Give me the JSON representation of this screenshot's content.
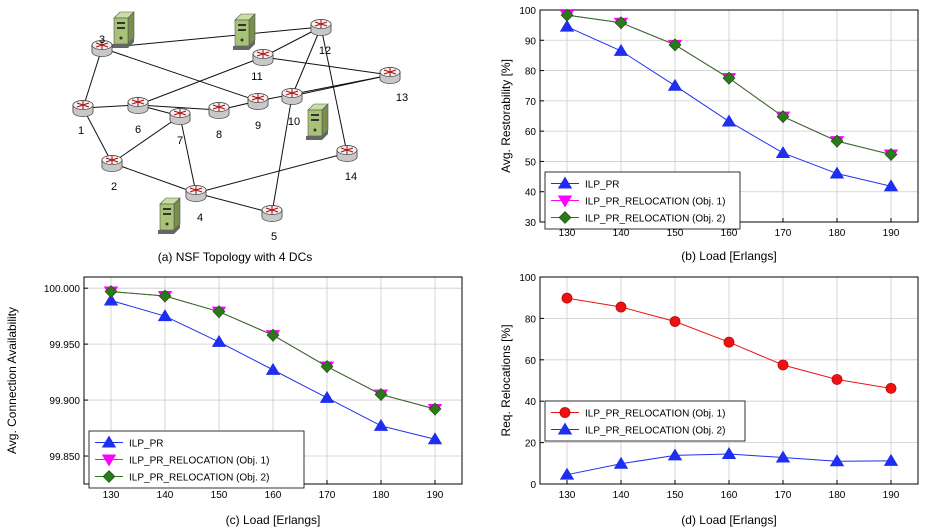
{
  "topology": {
    "caption": "(a) NSF Topology with 4 DCs",
    "nodes": [
      {
        "id": "1",
        "label": "1"
      },
      {
        "id": "2",
        "label": "2"
      },
      {
        "id": "3",
        "label": "3"
      },
      {
        "id": "4",
        "label": "4"
      },
      {
        "id": "5",
        "label": "5"
      },
      {
        "id": "6",
        "label": "6"
      },
      {
        "id": "7",
        "label": "7"
      },
      {
        "id": "8",
        "label": "8"
      },
      {
        "id": "9",
        "label": "9"
      },
      {
        "id": "10",
        "label": "10"
      },
      {
        "id": "11",
        "label": "11"
      },
      {
        "id": "12",
        "label": "12"
      },
      {
        "id": "13",
        "label": "13"
      },
      {
        "id": "14",
        "label": "14"
      }
    ],
    "links": [
      [
        "1",
        "2"
      ],
      [
        "1",
        "3"
      ],
      [
        "1",
        "6"
      ],
      [
        "2",
        "7"
      ],
      [
        "2",
        "4"
      ],
      [
        "3",
        "9"
      ],
      [
        "3",
        "12"
      ],
      [
        "6",
        "7"
      ],
      [
        "6",
        "8"
      ],
      [
        "6",
        "11"
      ],
      [
        "8",
        "9"
      ],
      [
        "9",
        "13"
      ],
      [
        "11",
        "12"
      ],
      [
        "11",
        "13"
      ],
      [
        "12",
        "10"
      ],
      [
        "12",
        "14"
      ],
      [
        "10",
        "13"
      ],
      [
        "10",
        "5"
      ],
      [
        "4",
        "5"
      ],
      [
        "4",
        "14"
      ],
      [
        "4",
        "7"
      ]
    ],
    "datacenters": [
      "3",
      "4",
      "10",
      "11"
    ],
    "router_icon": "router-icon",
    "server_icon": "server-icon"
  },
  "chart_data": [
    {
      "id": "b",
      "type": "line",
      "caption": "(b) Load [Erlangs]",
      "xlabel": "",
      "ylabel": "Avg. Restorability [%]",
      "x": [
        130,
        140,
        150,
        160,
        170,
        180,
        190
      ],
      "xlim": [
        125,
        195
      ],
      "ylim": [
        30,
        100
      ],
      "xticks": [
        "130",
        "140",
        "150",
        "160",
        "170",
        "180",
        "190"
      ],
      "yticks": [
        "30",
        "40",
        "50",
        "60",
        "70",
        "80",
        "90",
        "100"
      ],
      "legend_position": "bottom-left",
      "series": [
        {
          "name": "ILP_PR",
          "values": [
            94.5,
            86.5,
            75,
            63.2,
            52.8,
            46,
            41.8
          ],
          "color": "#1f2ff0",
          "marker": "triangle-up"
        },
        {
          "name": "ILP_PR_RELOCATION (Obj. 1)",
          "values": [
            98.3,
            95.8,
            88.5,
            77.5,
            64.8,
            56.7,
            52.3
          ],
          "color": "#ff00ff",
          "marker": "triangle-down"
        },
        {
          "name": "ILP_PR_RELOCATION (Obj. 2)",
          "values": [
            98.3,
            95.8,
            88.5,
            77.5,
            64.8,
            56.7,
            52.3
          ],
          "color": "#2a7a1a",
          "marker": "diamond"
        }
      ]
    },
    {
      "id": "c",
      "type": "line",
      "caption": "(c) Load [Erlangs]",
      "xlabel": "",
      "ylabel": "Avg. Connection Availability",
      "x": [
        130,
        140,
        150,
        160,
        170,
        180,
        190
      ],
      "xlim": [
        125,
        195
      ],
      "ylim": [
        99.825,
        100.01
      ],
      "xticks": [
        "130",
        "140",
        "150",
        "160",
        "170",
        "180",
        "190"
      ],
      "yticks": [
        "99.850",
        "99.900",
        "99.950",
        "100.000"
      ],
      "ytick_values": [
        99.85,
        99.9,
        99.95,
        100.0
      ],
      "legend_position": "bottom-left",
      "series": [
        {
          "name": "ILP_PR",
          "values": [
            99.989,
            99.975,
            99.952,
            99.927,
            99.902,
            99.877,
            99.865
          ],
          "color": "#1f2ff0",
          "marker": "triangle-up"
        },
        {
          "name": "ILP_PR_RELOCATION (Obj. 1)",
          "values": [
            99.997,
            99.993,
            99.979,
            99.958,
            99.93,
            99.905,
            99.892
          ],
          "color": "#ff00ff",
          "marker": "triangle-down"
        },
        {
          "name": "ILP_PR_RELOCATION (Obj. 2)",
          "values": [
            99.997,
            99.993,
            99.979,
            99.958,
            99.93,
            99.905,
            99.892
          ],
          "color": "#2a7a1a",
          "marker": "diamond"
        }
      ]
    },
    {
      "id": "d",
      "type": "line",
      "caption": "(d) Load [Erlangs]",
      "xlabel": "",
      "ylabel": "Req. Relocations [%]",
      "x": [
        130,
        140,
        150,
        160,
        170,
        180,
        190
      ],
      "xlim": [
        125,
        195
      ],
      "ylim": [
        0,
        100
      ],
      "xticks": [
        "130",
        "140",
        "150",
        "160",
        "170",
        "180",
        "190"
      ],
      "yticks": [
        "0",
        "20",
        "40",
        "60",
        "80",
        "100"
      ],
      "legend_position": "bottom-left",
      "series": [
        {
          "name": "ILP_PR_RELOCATION (Obj. 1)",
          "values": [
            89.8,
            85.5,
            78.5,
            68.5,
            57.5,
            50.5,
            46.2
          ],
          "color": "#ee1111",
          "marker": "circle"
        },
        {
          "name": "ILP_PR_RELOCATION (Obj. 2)",
          "values": [
            4.5,
            9.8,
            13.8,
            14.5,
            12.8,
            11,
            11.2
          ],
          "color": "#1f2ff0",
          "marker": "triangle-up"
        }
      ]
    }
  ]
}
